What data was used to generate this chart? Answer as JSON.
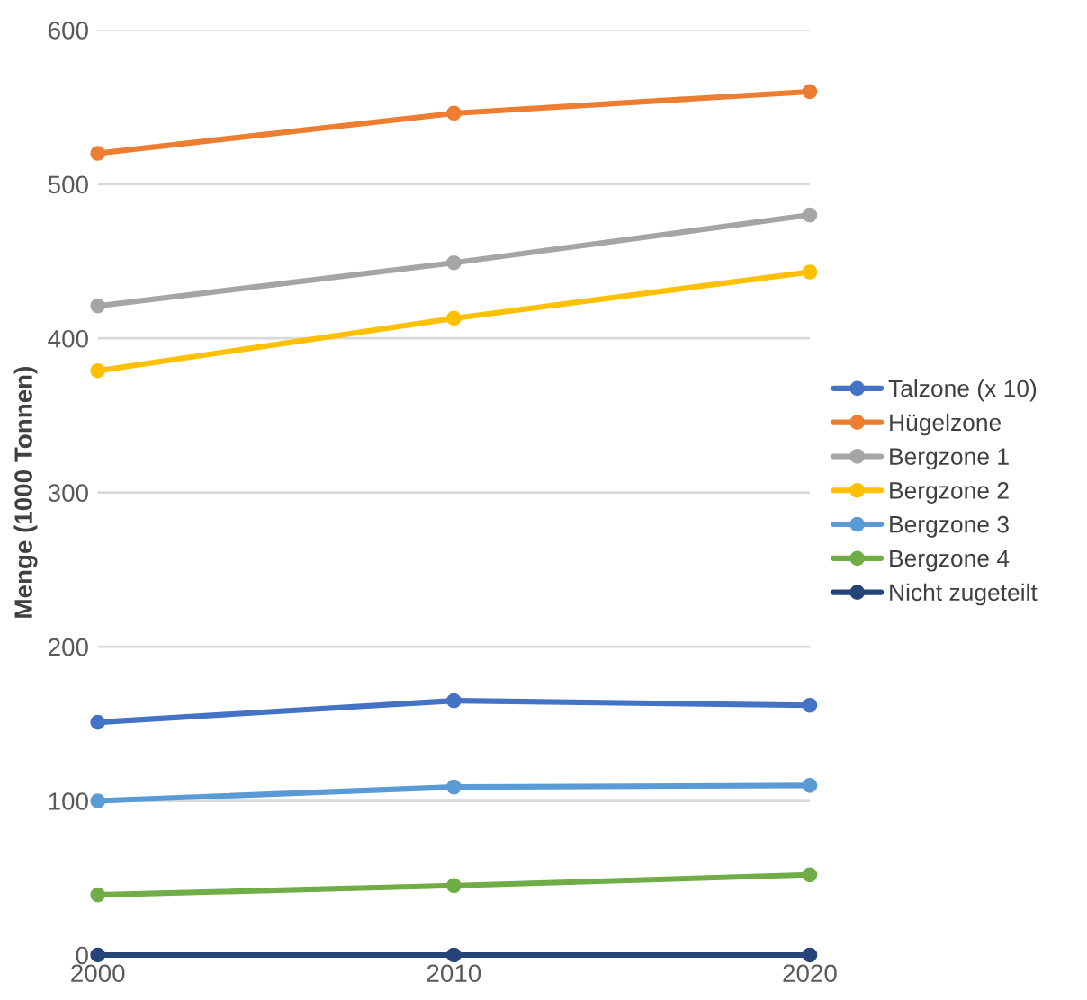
{
  "chart_data": {
    "type": "line",
    "ylabel": "Menge (1000 Tonnen)",
    "x": [
      2000,
      2010,
      2020
    ],
    "xlim": [
      2000,
      2020
    ],
    "xticks": [
      2000,
      2010,
      2020
    ],
    "ylim": [
      0,
      600
    ],
    "yticks": [
      0,
      100,
      200,
      300,
      400,
      500,
      600
    ],
    "grid": "y",
    "legend": "right",
    "marker": "circle",
    "line_style": "solid",
    "series": [
      {
        "name": "Talzone (x 10)",
        "color": "#4472c4",
        "values": [
          151,
          165,
          162
        ]
      },
      {
        "name": "Hügelzone",
        "color": "#ed7d31",
        "values": [
          520,
          546,
          560
        ]
      },
      {
        "name": "Bergzone 1",
        "color": "#a5a5a5",
        "values": [
          421,
          449,
          480
        ]
      },
      {
        "name": "Bergzone 2",
        "color": "#ffc000",
        "values": [
          379,
          413,
          443
        ]
      },
      {
        "name": "Bergzone 3",
        "color": "#5b9bd5",
        "values": [
          100,
          109,
          110
        ]
      },
      {
        "name": "Bergzone 4",
        "color": "#70ad47",
        "values": [
          39,
          45,
          52
        ]
      },
      {
        "name": "Nicht zugeteilt",
        "color": "#264478",
        "values": [
          0,
          0,
          0
        ]
      }
    ]
  }
}
